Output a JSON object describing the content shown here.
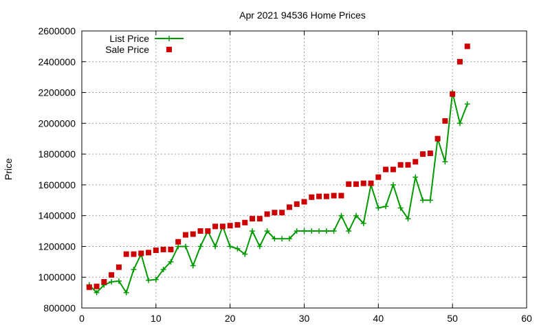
{
  "chart_data": {
    "type": "line",
    "title": "Apr 2021 94536 Home Prices",
    "xlabel": "",
    "ylabel": "Price",
    "xlim": [
      0,
      60
    ],
    "ylim": [
      800000,
      2600000
    ],
    "xticks": [
      0,
      10,
      20,
      30,
      40,
      50,
      60
    ],
    "yticks": [
      800000,
      1000000,
      1200000,
      1400000,
      1600000,
      1800000,
      2000000,
      2200000,
      2400000,
      2600000
    ],
    "grid": true,
    "legend_position": "top-left",
    "series": [
      {
        "name": "List Price",
        "kind": "line-points",
        "color": "#009900",
        "marker": "plus",
        "x": [
          1,
          2,
          3,
          4,
          5,
          6,
          7,
          8,
          9,
          10,
          11,
          12,
          13,
          14,
          15,
          16,
          17,
          18,
          19,
          20,
          21,
          22,
          23,
          24,
          25,
          26,
          27,
          28,
          29,
          30,
          31,
          32,
          33,
          34,
          35,
          36,
          37,
          38,
          39,
          40,
          41,
          42,
          43,
          44,
          45,
          46,
          47,
          48,
          49,
          50,
          51,
          52
        ],
        "y": [
          950000,
          900000,
          950000,
          970000,
          975000,
          900000,
          1050000,
          1150000,
          980000,
          985000,
          1050000,
          1100000,
          1200000,
          1200000,
          1075000,
          1200000,
          1300000,
          1200000,
          1330000,
          1200000,
          1185000,
          1150000,
          1300000,
          1200000,
          1300000,
          1250000,
          1250000,
          1250000,
          1300000,
          1300000,
          1300000,
          1300000,
          1300000,
          1300000,
          1400000,
          1300000,
          1400000,
          1350000,
          1600000,
          1450000,
          1460000,
          1600000,
          1450000,
          1380000,
          1650000,
          1500000,
          1500000,
          1900000,
          1750000,
          2200000,
          2000000,
          2125000
        ]
      },
      {
        "name": "Sale Price",
        "kind": "points",
        "color": "#cc0000",
        "marker": "square",
        "x": [
          1,
          2,
          3,
          4,
          5,
          6,
          7,
          8,
          9,
          10,
          11,
          12,
          13,
          14,
          15,
          16,
          17,
          18,
          19,
          20,
          21,
          22,
          23,
          24,
          25,
          26,
          27,
          28,
          29,
          30,
          31,
          32,
          33,
          34,
          35,
          36,
          37,
          38,
          39,
          40,
          41,
          42,
          43,
          44,
          45,
          46,
          47,
          48,
          49,
          50,
          51,
          52
        ],
        "y": [
          935000,
          940000,
          970000,
          1015000,
          1065000,
          1150000,
          1150000,
          1155000,
          1160000,
          1175000,
          1180000,
          1180000,
          1230000,
          1275000,
          1280000,
          1300000,
          1300000,
          1330000,
          1330000,
          1335000,
          1340000,
          1355000,
          1380000,
          1380000,
          1410000,
          1420000,
          1420000,
          1455000,
          1475000,
          1490000,
          1520000,
          1525000,
          1525000,
          1530000,
          1530000,
          1605000,
          1605000,
          1610000,
          1610000,
          1650000,
          1700000,
          1700000,
          1730000,
          1730000,
          1750000,
          1800000,
          1805000,
          1900000,
          2015000,
          2190000,
          2400000,
          2500000
        ]
      }
    ]
  }
}
